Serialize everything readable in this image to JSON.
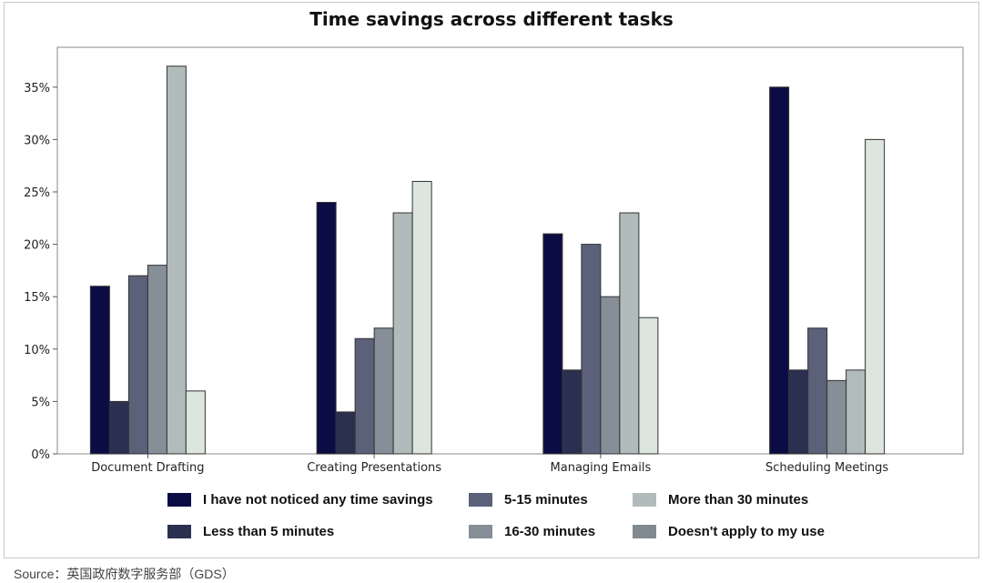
{
  "chart_data": {
    "type": "bar",
    "title": "Time savings across different tasks",
    "categories": [
      "Document Drafting",
      "Creating Presentations",
      "Managing Emails",
      "Scheduling Meetings"
    ],
    "series": [
      {
        "name": "I have not noticed any time savings",
        "color": "#0c0c45",
        "legend_color": "#0c0c45",
        "values": [
          16,
          24,
          21,
          35
        ]
      },
      {
        "name": "Less than 5 minutes",
        "color": "#2c3050",
        "legend_color": "#2c3050",
        "values": [
          5,
          4,
          8,
          8
        ]
      },
      {
        "name": "5-15 minutes",
        "color": "#5a6178",
        "legend_color": "#5a6178",
        "values": [
          17,
          11,
          20,
          12
        ]
      },
      {
        "name": "16-30 minutes",
        "color": "#868e98",
        "legend_color": "#868e98",
        "values": [
          18,
          12,
          15,
          7
        ]
      },
      {
        "name": "More than 30 minutes",
        "color": "#b1bbbb",
        "legend_color": "#b1bbbb",
        "values": [
          37,
          23,
          23,
          8
        ]
      },
      {
        "name": "Doesn't apply to my use",
        "color": "#dce6de",
        "legend_color": "#808a90",
        "values": [
          6,
          26,
          13,
          30
        ]
      }
    ],
    "yticks": [
      "0%",
      "5%",
      "10%",
      "15%",
      "20%",
      "25%",
      "30%",
      "35%"
    ],
    "ytick_values": [
      0,
      5,
      10,
      15,
      20,
      25,
      30,
      35
    ],
    "ylim": [
      0,
      38.8
    ],
    "xlabel": "",
    "ylabel": "",
    "grid": false,
    "legend_placement": "bottom"
  },
  "source": "Source：英国政府数字服务部（GDS）"
}
